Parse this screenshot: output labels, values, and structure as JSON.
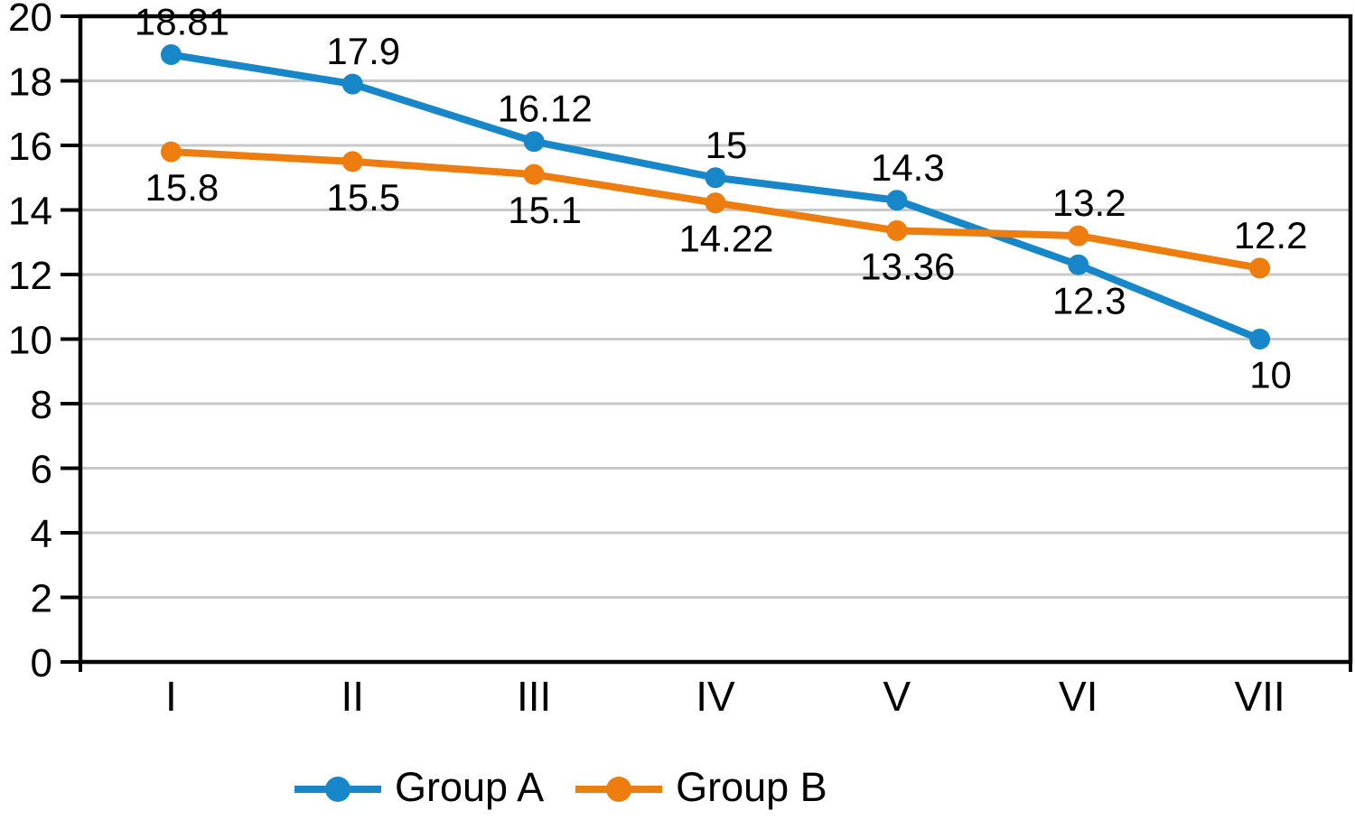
{
  "chart_data": {
    "type": "line",
    "categories": [
      "I",
      "II",
      "III",
      "IV",
      "V",
      "VI",
      "VII"
    ],
    "series": [
      {
        "name": "Group A",
        "color": "#1787c9",
        "values": [
          18.81,
          17.9,
          16.12,
          15,
          14.3,
          12.3,
          10
        ],
        "labels": [
          "18.81",
          "17.9",
          "16.12",
          "15",
          "14.3",
          "12.3",
          "10"
        ],
        "label_positions": [
          "above",
          "above",
          "above",
          "above",
          "above",
          "below",
          "below"
        ]
      },
      {
        "name": "Group B",
        "color": "#ee7d0f",
        "values": [
          15.8,
          15.5,
          15.1,
          14.22,
          13.36,
          13.2,
          12.2
        ],
        "labels": [
          "15.8",
          "15.5",
          "15.1",
          "14.22",
          "13.36",
          "13.2",
          "12.2"
        ],
        "label_positions": [
          "below",
          "below",
          "below",
          "below",
          "below",
          "above",
          "above"
        ]
      }
    ],
    "title": "",
    "xlabel": "",
    "ylabel": "",
    "ylim": [
      0,
      20
    ],
    "yticks": [
      0,
      2,
      4,
      6,
      8,
      10,
      12,
      14,
      16,
      18,
      20
    ],
    "grid": true,
    "legend_position": "bottom",
    "colors": {
      "grid": "#c8c8c8",
      "axis": "#000000",
      "text": "#000000",
      "background": "#ffffff"
    }
  }
}
